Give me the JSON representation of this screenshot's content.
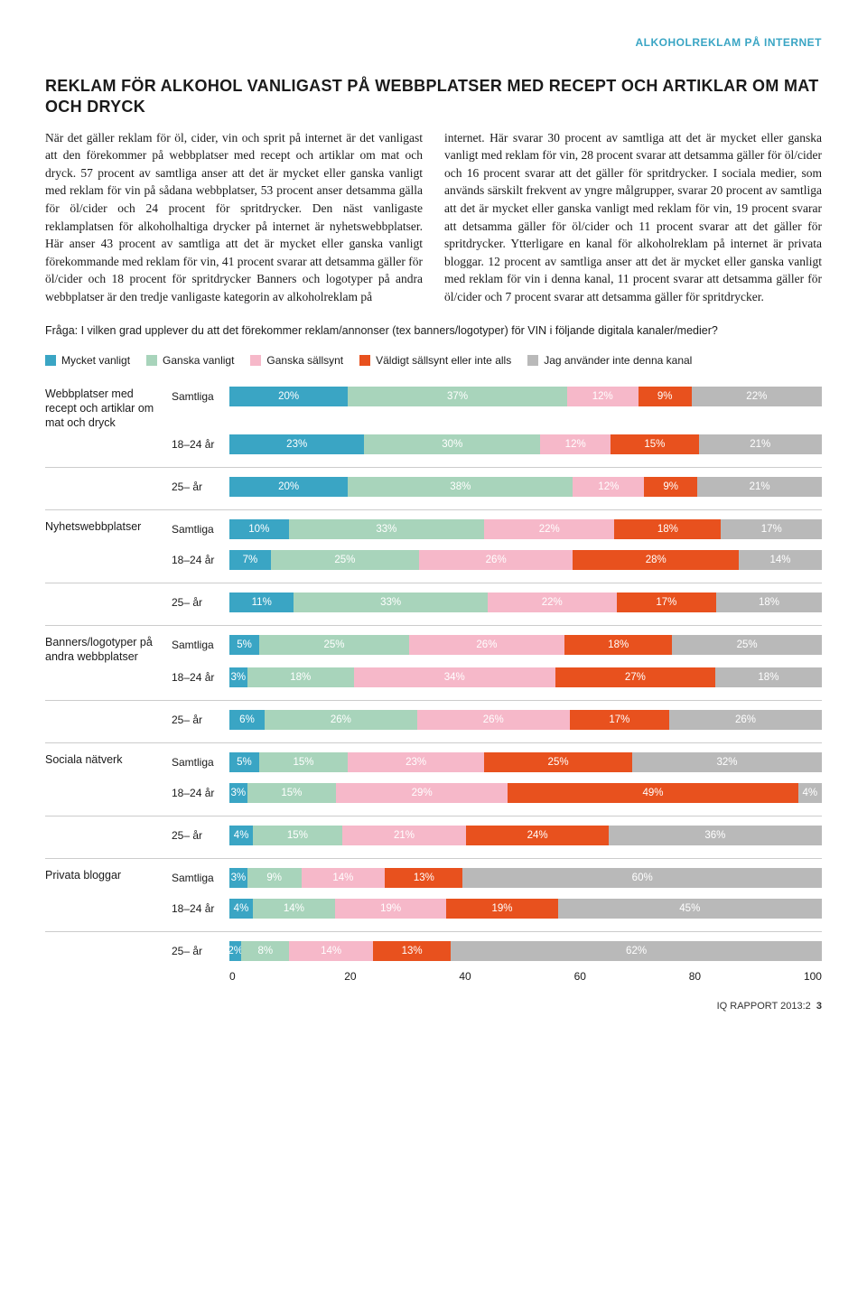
{
  "header_tag": "ALKOHOLREKLAM PÅ INTERNET",
  "header_tag_color": "#3aa5c4",
  "title": "REKLAM FÖR ALKOHOL VANLIGAST PÅ WEBBPLATSER MED RECEPT OCH ARTIKLAR OM MAT OCH DRYCK",
  "body_left": "När det gäller reklam för öl, cider, vin och sprit på internet är det vanligast att den förekommer på webbplatser med recept och artiklar om mat och dryck.\n57 procent av samtliga anser att det är mycket eller ganska vanligt med reklam för vin på sådana webbplatser, 53 procent anser detsamma gälla för öl/cider och 24 procent för spritdrycker.\nDen näst vanligaste reklamplatsen för alkoholhaltiga drycker på internet är nyhetswebbplatser. Här anser 43 procent av samtliga att det är mycket eller ganska vanligt förekommande med reklam för vin, 41 procent svarar att detsamma gäller för öl/cider och 18 procent för spritdrycker\nBanners och logotyper på andra webbplatser är den tredje vanligaste kategorin av alkoholreklam på",
  "body_right": "internet. Här svarar 30 procent av samtliga att det är mycket eller ganska vanligt med reklam för vin, 28 procent svarar att detsamma gäller för öl/cider och 16 procent svarar att det gäller för spritdrycker.\nI sociala medier, som används särskilt frekvent av yngre målgrupper, svarar 20 procent av samtliga att det är mycket eller ganska vanligt med reklam för vin, 19 procent svarar att detsamma gäller för öl/cider och 11 procent svarar att det gäller för spritdrycker.\nYtterligare en kanal för alkoholreklam på internet är privata bloggar. 12 procent av samtliga anser att det är mycket eller ganska vanligt med reklam för vin i denna kanal, 11 procent svarar att detsamma gäller för öl/cider och 7 procent svarar att detsamma gäller för spritdrycker.",
  "question": "Fråga: I vilken grad upplever du att det förekommer reklam/annonser (tex banners/logotyper) för VIN i följande digitala kanaler/medier?",
  "legend": [
    {
      "label": "Mycket vanligt",
      "color": "#3aa5c4"
    },
    {
      "label": "Ganska vanligt",
      "color": "#a8d4bb"
    },
    {
      "label": "Ganska sällsynt",
      "color": "#f6b8c9"
    },
    {
      "label": "Väldigt sällsynt eller inte alls",
      "color": "#e8511e"
    },
    {
      "label": "Jag använder inte denna kanal",
      "color": "#b9b9b9"
    }
  ],
  "chart": {
    "colors": [
      "#3aa5c4",
      "#a8d4bb",
      "#f6b8c9",
      "#e8511e",
      "#b9b9b9"
    ],
    "axis_ticks": [
      "0",
      "20",
      "40",
      "60",
      "80",
      "100"
    ],
    "groups": [
      {
        "category": "Webbplatser med recept och artiklar om mat och dryck",
        "rows": [
          {
            "label": "Samtliga",
            "values": [
              20,
              37,
              12,
              9,
              22
            ]
          },
          {
            "label": "18–24 år",
            "values": [
              23,
              30,
              12,
              15,
              21
            ]
          },
          {
            "label": "25– år",
            "values": [
              20,
              38,
              12,
              9,
              21
            ]
          }
        ]
      },
      {
        "category": "Nyhetswebbplatser",
        "rows": [
          {
            "label": "Samtliga",
            "values": [
              10,
              33,
              22,
              18,
              17
            ]
          },
          {
            "label": "18–24 år",
            "values": [
              7,
              25,
              26,
              28,
              14
            ]
          },
          {
            "label": "25– år",
            "values": [
              11,
              33,
              22,
              17,
              18
            ]
          }
        ]
      },
      {
        "category": "Banners/logotyper på andra webbplatser",
        "rows": [
          {
            "label": "Samtliga",
            "values": [
              5,
              25,
              26,
              18,
              25
            ]
          },
          {
            "label": "18–24 år",
            "values": [
              3,
              18,
              34,
              27,
              18
            ]
          },
          {
            "label": "25– år",
            "values": [
              6,
              26,
              26,
              17,
              26
            ]
          }
        ]
      },
      {
        "category": "Sociala nätverk",
        "rows": [
          {
            "label": "Samtliga",
            "values": [
              5,
              15,
              23,
              25,
              32
            ]
          },
          {
            "label": "18–24 år",
            "values": [
              3,
              15,
              29,
              49,
              4
            ]
          },
          {
            "label": "25– år",
            "values": [
              4,
              15,
              21,
              24,
              36
            ]
          }
        ]
      },
      {
        "category": "Privata bloggar",
        "rows": [
          {
            "label": "Samtliga",
            "values": [
              3,
              9,
              14,
              13,
              60
            ]
          },
          {
            "label": "18–24 år",
            "values": [
              4,
              14,
              19,
              19,
              45
            ]
          },
          {
            "label": "25– år",
            "values": [
              2,
              8,
              14,
              13,
              62
            ]
          }
        ]
      }
    ]
  },
  "footer": "IQ RAPPORT 2013:2",
  "footer_page": "3"
}
